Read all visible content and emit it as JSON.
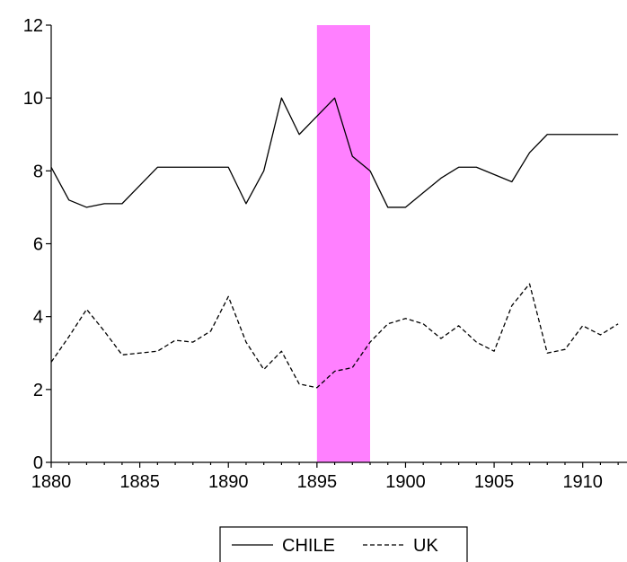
{
  "chart_data": {
    "type": "line",
    "title": "",
    "xlabel": "",
    "ylabel": "",
    "xlim": [
      1880,
      1912.5
    ],
    "ylim": [
      0,
      12
    ],
    "x_ticks": [
      1880,
      1885,
      1890,
      1895,
      1900,
      1905,
      1910
    ],
    "y_ticks": [
      0,
      2,
      4,
      6,
      8,
      10,
      12
    ],
    "grid": false,
    "legend_position": "bottom-center",
    "shaded_regions": [
      {
        "x_start": 1895,
        "x_end": 1898,
        "color": "#ff80ff"
      }
    ],
    "x": [
      1880,
      1881,
      1882,
      1883,
      1884,
      1885,
      1886,
      1887,
      1888,
      1889,
      1890,
      1891,
      1892,
      1893,
      1894,
      1895,
      1896,
      1897,
      1898,
      1899,
      1900,
      1901,
      1902,
      1903,
      1904,
      1905,
      1906,
      1907,
      1908,
      1909,
      1910,
      1911,
      1912
    ],
    "series": [
      {
        "name": "CHILE",
        "line_style": "solid",
        "color": "#000000",
        "values": [
          8.1,
          7.2,
          7.0,
          7.1,
          7.1,
          7.6,
          8.1,
          8.1,
          8.1,
          8.1,
          8.1,
          7.1,
          8.0,
          10.0,
          9.0,
          9.5,
          10.0,
          8.4,
          8.0,
          7.0,
          7.0,
          7.4,
          7.8,
          8.1,
          8.1,
          7.9,
          7.7,
          8.5,
          9.0,
          9.0,
          9.0,
          9.0,
          9.0
        ]
      },
      {
        "name": "UK",
        "line_style": "dashed",
        "color": "#000000",
        "values": [
          2.75,
          3.45,
          4.2,
          3.6,
          2.95,
          3.0,
          3.05,
          3.35,
          3.3,
          3.6,
          4.55,
          3.3,
          2.55,
          3.05,
          2.15,
          2.05,
          2.5,
          2.6,
          3.3,
          3.8,
          3.95,
          3.8,
          3.4,
          3.75,
          3.3,
          3.05,
          4.3,
          4.9,
          3.0,
          3.1,
          3.75,
          3.5,
          3.8
        ]
      }
    ]
  }
}
